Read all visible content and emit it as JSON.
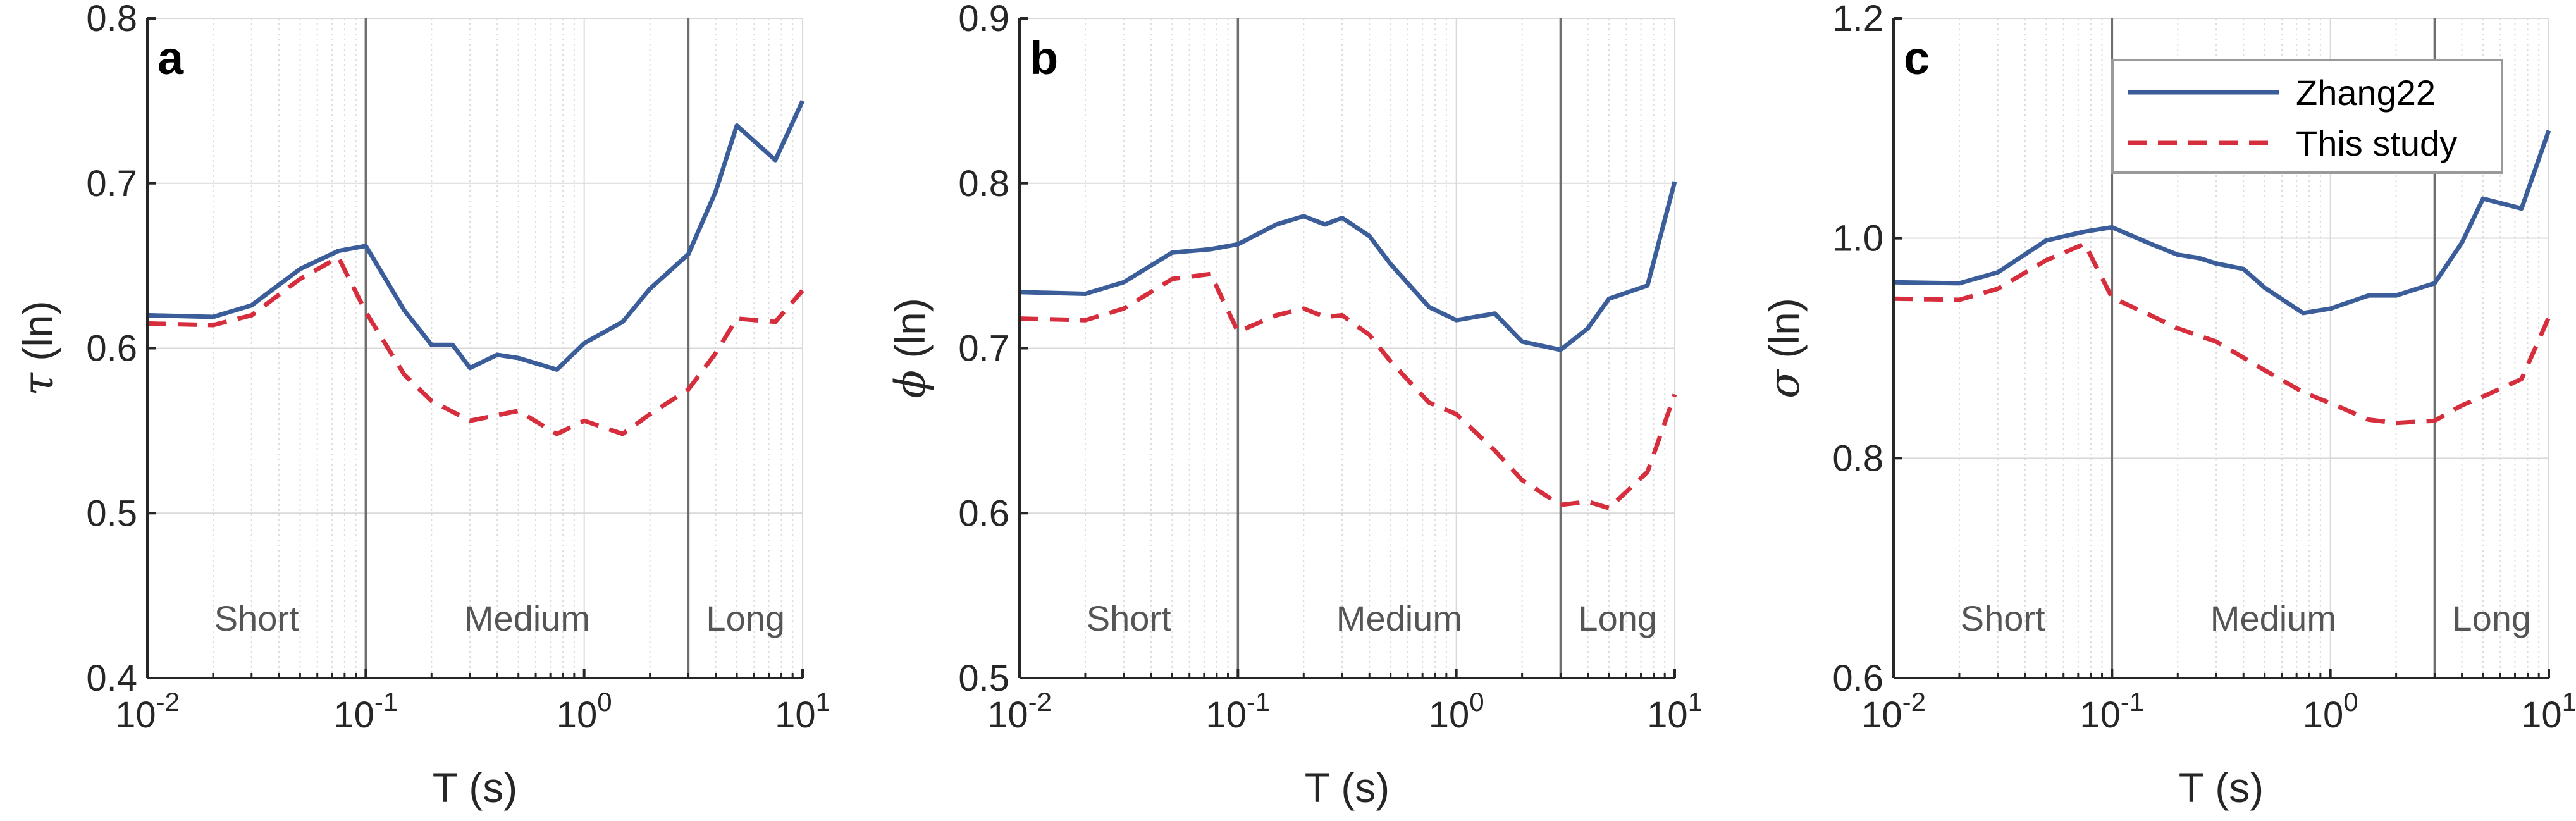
{
  "colors": {
    "zhang22": "#3b5e9a",
    "this_study": "#d62e3d",
    "grid": "#d9d9d9",
    "divider": "#6e6e6e",
    "axis": "#262626"
  },
  "legend": {
    "zhang22": "Zhang22",
    "this_study": "This study"
  },
  "chart_data": [
    {
      "type": "line",
      "panel": "a",
      "xlabel": "T (s)",
      "ylabel_symbol": "τ",
      "ylabel_unit": " (ln)",
      "xscale": "log",
      "xlim": [
        0.01,
        10
      ],
      "ylim": [
        0.4,
        0.8
      ],
      "yticks": [
        "0.4",
        "0.5",
        "0.6",
        "0.7",
        "0.8"
      ],
      "xticks": [
        {
          "base": "10",
          "exp": "-2"
        },
        {
          "base": "10",
          "exp": "-1"
        },
        {
          "base": "10",
          "exp": "0"
        },
        {
          "base": "10",
          "exp": "1"
        }
      ],
      "region_dividers": [
        0.1,
        3
      ],
      "regions": [
        "Short",
        "Medium",
        "Long"
      ],
      "legend": false,
      "series": [
        {
          "name": "Zhang22",
          "style": "solid",
          "x": [
            0.01,
            0.02,
            0.03,
            0.05,
            0.075,
            0.1,
            0.15,
            0.2,
            0.25,
            0.3,
            0.4,
            0.5,
            0.75,
            1.0,
            1.5,
            2.0,
            3.0,
            4.0,
            5.0,
            7.5,
            10.0
          ],
          "y": [
            0.62,
            0.619,
            0.626,
            0.648,
            0.659,
            0.662,
            0.623,
            0.602,
            0.602,
            0.588,
            0.596,
            0.594,
            0.587,
            0.603,
            0.616,
            0.636,
            0.657,
            0.695,
            0.735,
            0.714,
            0.75
          ]
        },
        {
          "name": "This study",
          "style": "dashed",
          "x": [
            0.01,
            0.02,
            0.03,
            0.05,
            0.075,
            0.1,
            0.15,
            0.2,
            0.3,
            0.5,
            0.75,
            1.0,
            1.5,
            2.0,
            3.0,
            4.0,
            5.0,
            7.5,
            10.0
          ],
          "y": [
            0.615,
            0.614,
            0.62,
            0.642,
            0.655,
            0.622,
            0.584,
            0.568,
            0.556,
            0.562,
            0.548,
            0.556,
            0.548,
            0.56,
            0.575,
            0.597,
            0.618,
            0.616,
            0.635
          ]
        }
      ]
    },
    {
      "type": "line",
      "panel": "b",
      "xlabel": "T (s)",
      "ylabel_symbol": "ϕ",
      "ylabel_unit": " (ln)",
      "xscale": "log",
      "xlim": [
        0.01,
        10
      ],
      "ylim": [
        0.5,
        0.9
      ],
      "yticks": [
        "0.5",
        "0.6",
        "0.7",
        "0.8",
        "0.9"
      ],
      "xticks": [
        {
          "base": "10",
          "exp": "-2"
        },
        {
          "base": "10",
          "exp": "-1"
        },
        {
          "base": "10",
          "exp": "0"
        },
        {
          "base": "10",
          "exp": "1"
        }
      ],
      "region_dividers": [
        0.1,
        3
      ],
      "regions": [
        "Short",
        "Medium",
        "Long"
      ],
      "legend": false,
      "series": [
        {
          "name": "Zhang22",
          "style": "solid",
          "x": [
            0.01,
            0.02,
            0.03,
            0.05,
            0.075,
            0.1,
            0.15,
            0.2,
            0.25,
            0.3,
            0.4,
            0.5,
            0.75,
            1.0,
            1.5,
            2.0,
            3.0,
            4.0,
            5.0,
            7.5,
            10.0
          ],
          "y": [
            0.734,
            0.733,
            0.74,
            0.758,
            0.76,
            0.763,
            0.775,
            0.78,
            0.775,
            0.779,
            0.768,
            0.751,
            0.725,
            0.717,
            0.721,
            0.704,
            0.699,
            0.712,
            0.73,
            0.738,
            0.801
          ]
        },
        {
          "name": "This study",
          "style": "dashed",
          "x": [
            0.01,
            0.02,
            0.03,
            0.05,
            0.075,
            0.1,
            0.15,
            0.2,
            0.25,
            0.3,
            0.4,
            0.5,
            0.75,
            1.0,
            1.5,
            2.0,
            3.0,
            4.0,
            5.0,
            7.5,
            10.0
          ],
          "y": [
            0.718,
            0.717,
            0.724,
            0.742,
            0.745,
            0.71,
            0.72,
            0.724,
            0.719,
            0.72,
            0.708,
            0.692,
            0.667,
            0.66,
            0.638,
            0.62,
            0.605,
            0.607,
            0.603,
            0.625,
            0.672
          ]
        }
      ]
    },
    {
      "type": "line",
      "panel": "c",
      "xlabel": "T (s)",
      "ylabel_symbol": "σ",
      "ylabel_unit": " (ln)",
      "xscale": "log",
      "xlim": [
        0.01,
        10
      ],
      "ylim": [
        0.6,
        1.2
      ],
      "yticks": [
        "0.6",
        "0.8",
        "1.0",
        "1.2"
      ],
      "xticks": [
        {
          "base": "10",
          "exp": "-2"
        },
        {
          "base": "10",
          "exp": "-1"
        },
        {
          "base": "10",
          "exp": "0"
        },
        {
          "base": "10",
          "exp": "1"
        }
      ],
      "region_dividers": [
        0.1,
        3
      ],
      "regions": [
        "Short",
        "Medium",
        "Long"
      ],
      "legend": true,
      "legend_position": "top-right",
      "series": [
        {
          "name": "Zhang22",
          "style": "solid",
          "x": [
            0.01,
            0.02,
            0.03,
            0.05,
            0.075,
            0.1,
            0.15,
            0.2,
            0.25,
            0.3,
            0.4,
            0.5,
            0.75,
            1.0,
            1.5,
            2.0,
            3.0,
            4.0,
            5.0,
            7.5,
            10.0
          ],
          "y": [
            0.96,
            0.959,
            0.969,
            0.998,
            1.006,
            1.01,
            0.995,
            0.985,
            0.982,
            0.977,
            0.972,
            0.955,
            0.932,
            0.936,
            0.948,
            0.948,
            0.959,
            0.996,
            1.036,
            1.027,
            1.098
          ]
        },
        {
          "name": "This study",
          "style": "dashed",
          "x": [
            0.01,
            0.02,
            0.03,
            0.05,
            0.075,
            0.1,
            0.15,
            0.2,
            0.3,
            0.5,
            0.75,
            1.0,
            1.5,
            2.0,
            3.0,
            4.0,
            5.0,
            7.5,
            10.0
          ],
          "y": [
            0.945,
            0.944,
            0.954,
            0.98,
            0.995,
            0.946,
            0.93,
            0.918,
            0.906,
            0.88,
            0.86,
            0.85,
            0.835,
            0.832,
            0.834,
            0.848,
            0.856,
            0.872,
            0.928
          ]
        }
      ]
    }
  ]
}
